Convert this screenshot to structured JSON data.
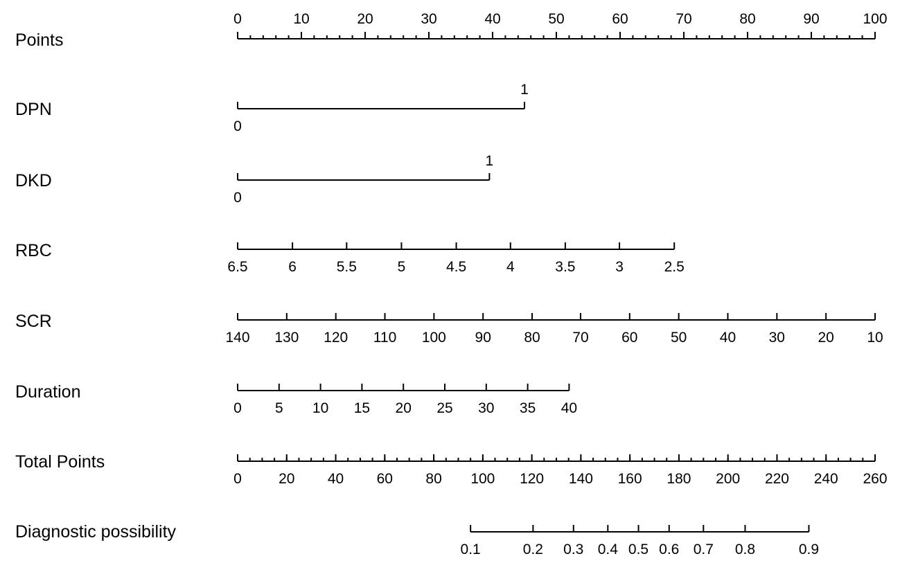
{
  "chart_data": {
    "type": "nomogram",
    "title": "",
    "rows": [
      {
        "name": "Points",
        "scale": "points",
        "ticks": [
          {
            "label": "0",
            "points": 0
          },
          {
            "label": "10",
            "points": 10
          },
          {
            "label": "20",
            "points": 20
          },
          {
            "label": "30",
            "points": 30
          },
          {
            "label": "40",
            "points": 40
          },
          {
            "label": "50",
            "points": 50
          },
          {
            "label": "60",
            "points": 60
          },
          {
            "label": "70",
            "points": 70
          },
          {
            "label": "80",
            "points": 80
          },
          {
            "label": "90",
            "points": 90
          },
          {
            "label": "100",
            "points": 100
          }
        ],
        "minor_step": 2
      },
      {
        "name": "DPN",
        "scale": "points",
        "ticks": [
          {
            "label": "0",
            "points": 0,
            "side": "below"
          },
          {
            "label": "1",
            "points": 45,
            "side": "above"
          }
        ]
      },
      {
        "name": "DKD",
        "scale": "points",
        "ticks": [
          {
            "label": "0",
            "points": 0,
            "side": "below"
          },
          {
            "label": "1",
            "points": 39.5,
            "side": "above"
          }
        ]
      },
      {
        "name": "RBC",
        "scale": "points",
        "ticks": [
          {
            "label": "6.5",
            "points": 0
          },
          {
            "label": "6",
            "points": 8.6
          },
          {
            "label": "5.5",
            "points": 17.1
          },
          {
            "label": "5",
            "points": 25.7
          },
          {
            "label": "4.5",
            "points": 34.3
          },
          {
            "label": "4",
            "points": 42.8
          },
          {
            "label": "3.5",
            "points": 51.4
          },
          {
            "label": "3",
            "points": 59.9
          },
          {
            "label": "2.5",
            "points": 68.5
          }
        ]
      },
      {
        "name": "SCR",
        "scale": "points",
        "ticks": [
          {
            "label": "140",
            "points": 0
          },
          {
            "label": "130",
            "points": 7.7
          },
          {
            "label": "120",
            "points": 15.4
          },
          {
            "label": "110",
            "points": 23.1
          },
          {
            "label": "100",
            "points": 30.8
          },
          {
            "label": "90",
            "points": 38.5
          },
          {
            "label": "80",
            "points": 46.2
          },
          {
            "label": "70",
            "points": 53.8
          },
          {
            "label": "60",
            "points": 61.5
          },
          {
            "label": "50",
            "points": 69.2
          },
          {
            "label": "40",
            "points": 76.9
          },
          {
            "label": "30",
            "points": 84.6
          },
          {
            "label": "20",
            "points": 92.3
          },
          {
            "label": "10",
            "points": 100
          }
        ]
      },
      {
        "name": "Duration",
        "scale": "points",
        "ticks": [
          {
            "label": "0",
            "points": 0
          },
          {
            "label": "5",
            "points": 6.5
          },
          {
            "label": "10",
            "points": 13
          },
          {
            "label": "15",
            "points": 19.5
          },
          {
            "label": "20",
            "points": 26
          },
          {
            "label": "25",
            "points": 32.5
          },
          {
            "label": "30",
            "points": 39
          },
          {
            "label": "35",
            "points": 45.5
          },
          {
            "label": "40",
            "points": 52
          }
        ]
      },
      {
        "name": "Total Points",
        "scale": "total",
        "ticks": [
          {
            "label": "0",
            "total": 0
          },
          {
            "label": "20",
            "total": 20
          },
          {
            "label": "40",
            "total": 40
          },
          {
            "label": "60",
            "total": 60
          },
          {
            "label": "80",
            "total": 80
          },
          {
            "label": "100",
            "total": 100
          },
          {
            "label": "120",
            "total": 120
          },
          {
            "label": "140",
            "total": 140
          },
          {
            "label": "160",
            "total": 160
          },
          {
            "label": "180",
            "total": 180
          },
          {
            "label": "200",
            "total": 200
          },
          {
            "label": "220",
            "total": 220
          },
          {
            "label": "240",
            "total": 240
          },
          {
            "label": "260",
            "total": 260
          }
        ],
        "minor_step": 5
      },
      {
        "name": "Diagnostic possibility",
        "scale": "total",
        "ticks": [
          {
            "label": "0.1",
            "total": 95
          },
          {
            "label": "0.2",
            "total": 120.5
          },
          {
            "label": "0.3",
            "total": 137
          },
          {
            "label": "0.4",
            "total": 151
          },
          {
            "label": "0.5",
            "total": 163.5
          },
          {
            "label": "0.6",
            "total": 176
          },
          {
            "label": "0.7",
            "total": 190
          },
          {
            "label": "0.8",
            "total": 207
          },
          {
            "label": "0.9",
            "total": 233
          }
        ]
      }
    ],
    "points_range": [
      0,
      100
    ],
    "total_points_range": [
      0,
      260
    ]
  }
}
